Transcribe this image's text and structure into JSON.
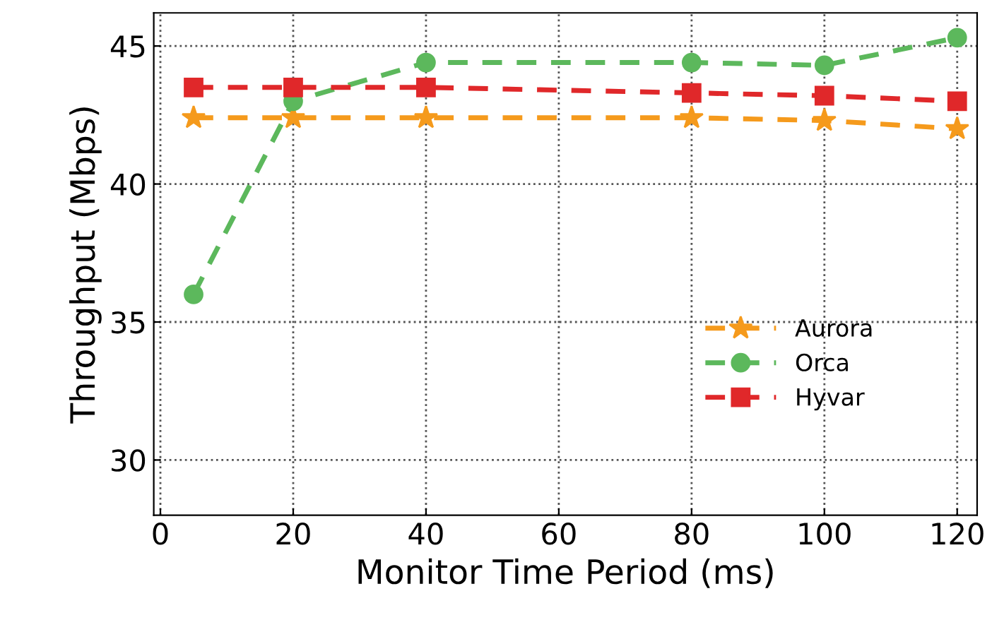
{
  "chart_data": {
    "type": "line",
    "xlabel": "Monitor Time Period (ms)",
    "ylabel": "Throughput (Mbps)",
    "x": [
      5,
      20,
      40,
      80,
      100,
      120
    ],
    "series": [
      {
        "name": "Aurora",
        "color": "#f59a1c",
        "marker": "star",
        "values": [
          42.4,
          42.4,
          42.4,
          42.4,
          42.3,
          42.0
        ]
      },
      {
        "name": "Orca",
        "color": "#5cb85c",
        "marker": "circle",
        "values": [
          36.0,
          43.0,
          44.4,
          44.4,
          44.3,
          45.3
        ]
      },
      {
        "name": "Hyvar",
        "color": "#e0282a",
        "marker": "square",
        "values": [
          43.5,
          43.5,
          43.5,
          43.3,
          43.2,
          43.0
        ]
      }
    ],
    "xlim": [
      -1,
      123
    ],
    "ylim": [
      28,
      46.2
    ],
    "xticks": [
      0,
      20,
      40,
      60,
      80,
      100,
      120
    ],
    "yticks": [
      30,
      35,
      40,
      45
    ],
    "grid": true,
    "legend": "right",
    "line_style": "dashed"
  }
}
